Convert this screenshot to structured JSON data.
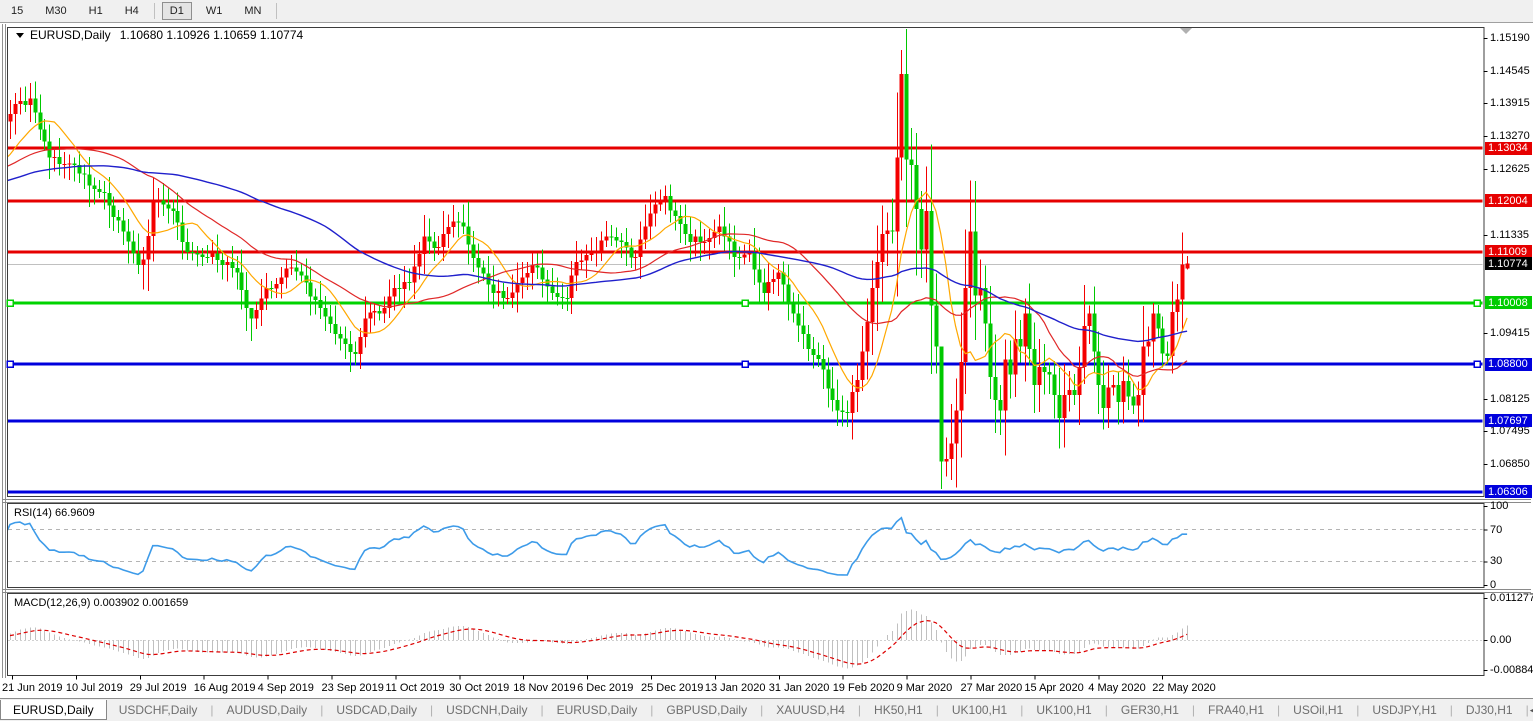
{
  "toolbar": {
    "timeframes": [
      {
        "label": "15",
        "active": false
      },
      {
        "label": "M30",
        "active": false
      },
      {
        "label": "H1",
        "active": false
      },
      {
        "label": "H4",
        "active": false
      },
      {
        "label": "D1",
        "active": true
      },
      {
        "label": "W1",
        "active": false
      },
      {
        "label": "MN",
        "active": false
      }
    ],
    "separator_after": [
      3,
      6
    ]
  },
  "window": {
    "title_symbol": "EURUSD,Daily",
    "title_ohlc": "1.10680 1.10926 1.10659 1.10774"
  },
  "price_axis": {
    "ticks": [
      {
        "label": "1.15190",
        "price": 1.1519
      },
      {
        "label": "1.14545",
        "price": 1.14545
      },
      {
        "label": "1.13915",
        "price": 1.13915
      },
      {
        "label": "1.13270",
        "price": 1.1327
      },
      {
        "label": "1.12625",
        "price": 1.12625
      },
      {
        "label": "1.11335",
        "price": 1.11335
      },
      {
        "label": "1.09415",
        "price": 1.09415
      },
      {
        "label": "1.08125",
        "price": 1.08125
      },
      {
        "label": "1.07495",
        "price": 1.07495
      },
      {
        "label": "1.06850",
        "price": 1.0685
      }
    ],
    "boxes": [
      {
        "label": "1.13034",
        "price": 1.13034,
        "bg": "#e60000"
      },
      {
        "label": "1.12004",
        "price": 1.12004,
        "bg": "#e60000"
      },
      {
        "label": "1.11009",
        "price": 1.11009,
        "bg": "#e60000"
      },
      {
        "label": "1.10774",
        "price": 1.10774,
        "bg": "#000000"
      },
      {
        "label": "1.10008",
        "price": 1.10008,
        "bg": "#00cc00"
      },
      {
        "label": "1.08800",
        "price": 1.088,
        "bg": "#0000dd"
      },
      {
        "label": "1.07697",
        "price": 1.07697,
        "bg": "#0000dd"
      },
      {
        "label": "1.06306",
        "price": 1.06306,
        "bg": "#0000dd"
      }
    ]
  },
  "levels": [
    {
      "price": 1.13034,
      "color": "#e60000",
      "width": 3,
      "selected": false
    },
    {
      "price": 1.12004,
      "color": "#e60000",
      "width": 3,
      "selected": false
    },
    {
      "price": 1.11009,
      "color": "#e60000",
      "width": 3,
      "selected": false
    },
    {
      "price": 1.10008,
      "color": "#00d300",
      "width": 3,
      "selected": true
    },
    {
      "price": 1.088,
      "color": "#0000dd",
      "width": 3,
      "selected": true
    },
    {
      "price": 1.07697,
      "color": "#0000dd",
      "width": 3,
      "selected": false
    },
    {
      "price": 1.06306,
      "color": "#0000dd",
      "width": 3,
      "selected": false
    }
  ],
  "current_price": {
    "label": "1.10774",
    "price": 1.10774,
    "line_color": "#c0c0c0"
  },
  "indicator_axes": {
    "rsi": [
      {
        "label": "100",
        "v": 100
      },
      {
        "label": "70",
        "v": 70
      },
      {
        "label": "30",
        "v": 30
      },
      {
        "label": "0",
        "v": 0
      }
    ],
    "macd": [
      {
        "label": "0.011277",
        "y": 598
      },
      {
        "label": "0.00",
        "y": 640
      },
      {
        "label": "-0.008845",
        "y": 670
      }
    ]
  },
  "chart_data": {
    "type": "candlestick",
    "symbol": "EURUSD",
    "timeframe": "Daily",
    "bars": 240,
    "last_bar_ohlc": [
      1.1068,
      1.10926,
      1.10659,
      1.10774
    ],
    "ylim": [
      1.062,
      1.1538
    ],
    "x_labels": [
      "21 Jun 2019",
      "10 Jul 2019",
      "29 Jul 2019",
      "16 Aug 2019",
      "4 Sep 2019",
      "23 Sep 2019",
      "11 Oct 2019",
      "30 Oct 2019",
      "18 Nov 2019",
      "6 Dec 2019",
      "25 Dec 2019",
      "13 Jan 2020",
      "31 Jan 2020",
      "19 Feb 2020",
      "9 Mar 2020",
      "27 Mar 2020",
      "15 Apr 2020",
      "4 May 2020",
      "22 May 2020"
    ],
    "bars_per_label": 13,
    "close_anchors": [
      [
        0,
        1.137
      ],
      [
        2,
        1.1395
      ],
      [
        4,
        1.14
      ],
      [
        8,
        1.1285
      ],
      [
        13,
        1.127
      ],
      [
        16,
        1.123
      ],
      [
        19,
        1.1215
      ],
      [
        23,
        1.114
      ],
      [
        26,
        1.1075
      ],
      [
        27,
        1.1085
      ],
      [
        29,
        1.12
      ],
      [
        33,
        1.118
      ],
      [
        36,
        1.11
      ],
      [
        40,
        1.109
      ],
      [
        44,
        1.108
      ],
      [
        46,
        1.106
      ],
      [
        48,
        1.099
      ],
      [
        49,
        1.097
      ],
      [
        52,
        1.103
      ],
      [
        55,
        1.105
      ],
      [
        57,
        1.107
      ],
      [
        60,
        1.104
      ],
      [
        63,
        1.099
      ],
      [
        66,
        1.094
      ],
      [
        68,
        1.092
      ],
      [
        70,
        1.09
      ],
      [
        72,
        1.097
      ],
      [
        75,
        1.098
      ],
      [
        78,
        1.103
      ],
      [
        81,
        1.104
      ],
      [
        84,
        1.113
      ],
      [
        87,
        1.111
      ],
      [
        90,
        1.116
      ],
      [
        92,
        1.115
      ],
      [
        95,
        1.107
      ],
      [
        98,
        1.102
      ],
      [
        101,
        1.101
      ],
      [
        104,
        1.105
      ],
      [
        107,
        1.107
      ],
      [
        110,
        1.102
      ],
      [
        113,
        1.101
      ],
      [
        115,
        1.108
      ],
      [
        118,
        1.11
      ],
      [
        121,
        1.113
      ],
      [
        124,
        1.112
      ],
      [
        127,
        1.109
      ],
      [
        130,
        1.1175
      ],
      [
        133,
        1.121
      ],
      [
        135,
        1.117
      ],
      [
        138,
        1.112
      ],
      [
        141,
        1.112
      ],
      [
        144,
        1.115
      ],
      [
        147,
        1.109
      ],
      [
        150,
        1.11
      ],
      [
        153,
        1.102
      ],
      [
        156,
        1.106
      ],
      [
        159,
        1.098
      ],
      [
        162,
        1.091
      ],
      [
        165,
        1.087
      ],
      [
        168,
        1.079
      ],
      [
        170,
        1.0785
      ],
      [
        172,
        1.085
      ],
      [
        175,
        1.103
      ],
      [
        177,
        1.1135
      ],
      [
        179,
        1.114
      ],
      [
        180,
        1.1285
      ],
      [
        181,
        1.1448
      ],
      [
        182,
        1.1281
      ],
      [
        183,
        1.127
      ],
      [
        184,
        1.1184
      ],
      [
        185,
        1.1105
      ],
      [
        186,
        1.118
      ],
      [
        187,
        1.0995
      ],
      [
        188,
        1.0915
      ],
      [
        189,
        1.069
      ],
      [
        190,
        1.0695
      ],
      [
        191,
        1.0725
      ],
      [
        192,
        1.079
      ],
      [
        193,
        1.0885
      ],
      [
        194,
        1.103
      ],
      [
        195,
        1.114
      ],
      [
        196,
        1.1015
      ],
      [
        197,
        1.103
      ],
      [
        198,
        1.096
      ],
      [
        199,
        1.0855
      ],
      [
        200,
        1.081
      ],
      [
        201,
        1.079
      ],
      [
        202,
        1.089
      ],
      [
        203,
        1.086
      ],
      [
        204,
        1.093
      ],
      [
        205,
        1.0915
      ],
      [
        206,
        1.098
      ],
      [
        207,
        1.091
      ],
      [
        208,
        1.084
      ],
      [
        209,
        1.0875
      ],
      [
        210,
        1.0865
      ],
      [
        211,
        1.086
      ],
      [
        212,
        1.082
      ],
      [
        213,
        1.0775
      ],
      [
        214,
        1.082
      ],
      [
        215,
        1.083
      ],
      [
        216,
        1.082
      ],
      [
        217,
        1.0875
      ],
      [
        218,
        1.0955
      ],
      [
        219,
        1.098
      ],
      [
        220,
        1.0905
      ],
      [
        221,
        1.084
      ],
      [
        222,
        1.0795
      ],
      [
        223,
        1.0835
      ],
      [
        224,
        1.084
      ],
      [
        225,
        1.0807
      ],
      [
        226,
        1.0848
      ],
      [
        227,
        1.0817
      ],
      [
        228,
        1.08
      ],
      [
        229,
        1.082
      ],
      [
        230,
        1.0915
      ],
      [
        231,
        1.0925
      ],
      [
        232,
        1.098
      ],
      [
        233,
        1.095
      ],
      [
        234,
        1.0901
      ],
      [
        235,
        1.0897
      ],
      [
        236,
        1.0983
      ],
      [
        237,
        1.1007
      ],
      [
        238,
        1.1076
      ],
      [
        239,
        1.1077
      ]
    ],
    "wick_overrides": {
      "27": [
        1.111,
        1.1027
      ],
      "49": [
        1.099,
        1.0926
      ],
      "70": [
        1.0925,
        1.0879
      ],
      "181": [
        1.1495,
        1.124
      ],
      "184": [
        1.1333,
        1.1054
      ],
      "189": [
        1.076,
        1.0636
      ]
    },
    "pre_trend": [
      1.118,
      1.129,
      70
    ],
    "moving_averages": [
      {
        "period": 10,
        "color": "#ffa800",
        "width": 1.2
      },
      {
        "period": 30,
        "color": "#e02828",
        "width": 1.2
      },
      {
        "period": 65,
        "color": "#2020cc",
        "width": 1.4
      }
    ],
    "rsi": {
      "label": "RSI(14) 66.9609",
      "period": 14,
      "levels": [
        70,
        30
      ],
      "range": [
        0,
        100
      ],
      "color": "#3d9be9"
    },
    "macd": {
      "label": "MACD(12,26,9) 0.003902 0.001659",
      "fast": 12,
      "slow": 26,
      "signal": 9,
      "hist_color": "#c0c0c0",
      "signal_color": "#dd0000",
      "current": [
        0.003902,
        0.001659
      ]
    }
  },
  "tabs": {
    "items": [
      "EURUSD,Daily",
      "USDCHF,Daily",
      "AUDUSD,Daily",
      "USDCAD,Daily",
      "USDCNH,Daily",
      "EURUSD,Daily",
      "GBPUSD,Daily",
      "XAUUSD,H4",
      "HK50,H1",
      "UK100,H1",
      "UK100,H1",
      "GER30,H1",
      "FRA40,H1",
      "USOil,H1",
      "USDJPY,H1",
      "DJ30,H1"
    ],
    "active_index": 0,
    "separator": "|",
    "nav_left": "◂",
    "nav_right": "▸"
  },
  "colors": {
    "bull": "#f40000",
    "bear": "#00c800",
    "pane_border": "#3c3c3c",
    "splitter": "#8a8a8a",
    "rsi_guide": "#b4b4b4",
    "shift_marker": "#b0b0b0"
  }
}
